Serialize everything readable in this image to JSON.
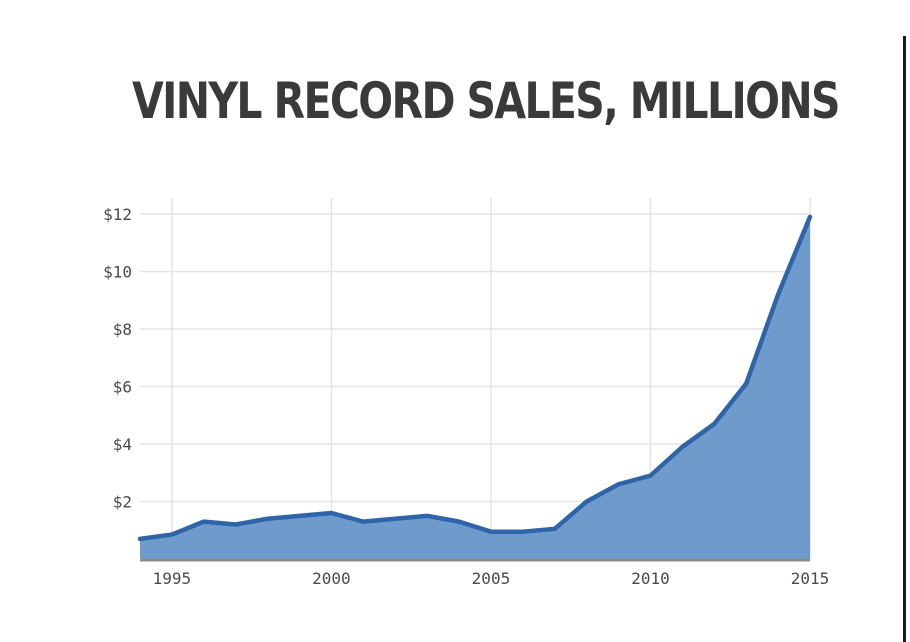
{
  "chart_data": {
    "type": "area",
    "title": "VINYL RECORD SALES, MILLIONS",
    "xlabel": "",
    "ylabel": "",
    "x": [
      1994,
      1995,
      1996,
      1997,
      1998,
      1999,
      2000,
      2001,
      2002,
      2003,
      2004,
      2005,
      2006,
      2007,
      2008,
      2009,
      2010,
      2011,
      2012,
      2013,
      2014,
      2015
    ],
    "series": [
      {
        "values": [
          0.7,
          0.85,
          1.3,
          1.2,
          1.4,
          1.5,
          1.6,
          1.3,
          1.4,
          1.5,
          1.3,
          0.95,
          0.95,
          1.05,
          2.0,
          2.6,
          2.9,
          3.9,
          4.7,
          6.1,
          9.2,
          11.9
        ]
      }
    ],
    "xticks": [
      1995,
      2000,
      2005,
      2010,
      2015
    ],
    "xtick_labels": [
      "1995",
      "2000",
      "2005",
      "2010",
      "2015"
    ],
    "yticks": [
      2,
      4,
      6,
      8,
      10,
      12
    ],
    "ytick_labels": [
      "$2",
      "$4",
      "$6",
      "$8",
      "$10",
      "$12"
    ],
    "xlim": [
      1994,
      2015
    ],
    "ylim": [
      0,
      12
    ],
    "grid": true,
    "line_color": "#2e64a8",
    "fill_color": "#6f9bcc"
  }
}
